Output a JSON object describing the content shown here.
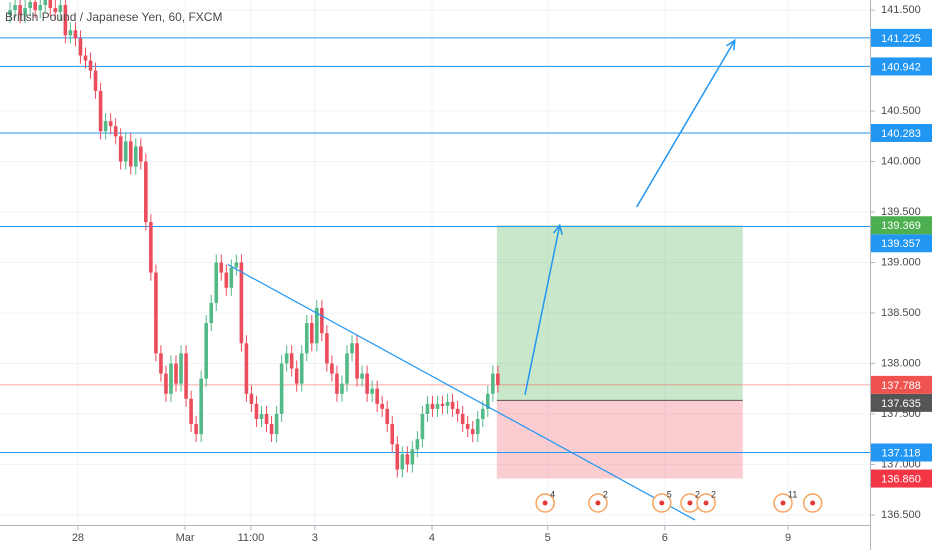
{
  "chart_data": {
    "type": "candlestick",
    "title": "British Pound / Japanese Yen, 60, FXCM",
    "x": [
      2,
      3,
      4,
      5,
      6,
      7,
      8,
      9,
      10,
      11,
      12,
      13,
      14,
      15,
      16,
      17,
      18,
      19,
      20,
      21,
      22,
      23,
      24,
      25,
      26,
      27,
      28,
      29,
      30,
      31,
      32,
      33,
      34,
      35,
      36,
      37,
      38,
      39,
      40,
      41,
      42,
      43,
      44,
      45,
      46,
      47,
      48,
      49,
      50,
      51,
      52,
      53,
      54,
      55,
      56,
      57,
      58,
      59,
      60,
      61,
      62,
      63,
      64,
      65,
      66,
      67,
      68,
      69,
      70,
      71,
      72,
      73,
      74,
      75,
      76,
      77,
      78,
      79,
      80,
      81,
      82,
      83,
      84,
      85,
      86,
      87,
      88,
      89,
      90,
      91,
      92,
      93,
      94,
      95,
      96,
      97,
      98,
      99
    ],
    "candles": [
      [
        141.45,
        141.58,
        141.37,
        141.5
      ],
      [
        141.5,
        141.63,
        141.42,
        141.55
      ],
      [
        141.55,
        141.63,
        141.37,
        141.45
      ],
      [
        141.45,
        141.6,
        141.37,
        141.52
      ],
      [
        141.52,
        141.66,
        141.44,
        141.58
      ],
      [
        141.58,
        141.66,
        141.42,
        141.5
      ],
      [
        141.5,
        141.63,
        141.42,
        141.55
      ],
      [
        141.55,
        141.68,
        141.47,
        141.6
      ],
      [
        141.6,
        141.68,
        141.44,
        141.52
      ],
      [
        141.52,
        141.6,
        141.4,
        141.48
      ],
      [
        141.48,
        141.63,
        141.4,
        141.55
      ],
      [
        141.55,
        141.63,
        141.17,
        141.25
      ],
      [
        141.25,
        141.38,
        141.17,
        141.3
      ],
      [
        141.3,
        141.38,
        141.14,
        141.22
      ],
      [
        141.22,
        141.3,
        140.97,
        141.05
      ],
      [
        141.05,
        141.13,
        140.92,
        141.0
      ],
      [
        141.0,
        141.08,
        140.82,
        140.9
      ],
      [
        140.9,
        140.98,
        140.62,
        140.7
      ],
      [
        140.7,
        140.78,
        140.22,
        140.3
      ],
      [
        140.3,
        140.48,
        140.22,
        140.4
      ],
      [
        140.4,
        140.48,
        140.27,
        140.35
      ],
      [
        140.35,
        140.43,
        140.17,
        140.25
      ],
      [
        140.25,
        140.33,
        139.92,
        140.0
      ],
      [
        140.0,
        140.28,
        139.92,
        140.2
      ],
      [
        140.2,
        140.28,
        139.87,
        139.95
      ],
      [
        139.95,
        140.23,
        139.87,
        140.15
      ],
      [
        140.15,
        140.23,
        139.92,
        140.0
      ],
      [
        140.0,
        140.08,
        139.32,
        139.4
      ],
      [
        139.4,
        139.48,
        138.82,
        138.9
      ],
      [
        138.9,
        138.98,
        138.02,
        138.1
      ],
      [
        138.1,
        138.18,
        137.82,
        137.9
      ],
      [
        137.9,
        137.98,
        137.62,
        137.7
      ],
      [
        137.7,
        138.08,
        137.62,
        138.0
      ],
      [
        138.0,
        138.08,
        137.72,
        137.8
      ],
      [
        137.8,
        138.18,
        137.72,
        138.1
      ],
      [
        138.1,
        138.18,
        137.57,
        137.65
      ],
      [
        137.65,
        137.73,
        137.32,
        137.4
      ],
      [
        137.4,
        137.48,
        137.22,
        137.3
      ],
      [
        137.3,
        137.93,
        137.22,
        137.85
      ],
      [
        137.85,
        138.48,
        137.77,
        138.4
      ],
      [
        138.4,
        138.68,
        138.32,
        138.6
      ],
      [
        138.6,
        139.08,
        138.52,
        139.0
      ],
      [
        139.0,
        139.08,
        138.82,
        138.9
      ],
      [
        138.9,
        138.98,
        138.67,
        138.75
      ],
      [
        138.75,
        139.03,
        138.67,
        138.95
      ],
      [
        138.95,
        139.08,
        138.87,
        139.0
      ],
      [
        139.0,
        139.08,
        138.12,
        138.2
      ],
      [
        138.2,
        138.28,
        137.62,
        137.7
      ],
      [
        137.7,
        137.78,
        137.52,
        137.6
      ],
      [
        137.6,
        137.68,
        137.37,
        137.45
      ],
      [
        137.45,
        137.58,
        137.37,
        137.5
      ],
      [
        137.5,
        137.58,
        137.32,
        137.4
      ],
      [
        137.4,
        137.48,
        137.22,
        137.3
      ],
      [
        137.3,
        137.58,
        137.22,
        137.5
      ],
      [
        137.5,
        138.08,
        137.42,
        138.0
      ],
      [
        138.0,
        138.18,
        137.92,
        138.1
      ],
      [
        138.1,
        138.18,
        137.87,
        137.95
      ],
      [
        137.95,
        138.03,
        137.72,
        137.8
      ],
      [
        137.8,
        138.18,
        137.72,
        138.1
      ],
      [
        138.1,
        138.48,
        138.02,
        138.4
      ],
      [
        138.4,
        138.48,
        138.12,
        138.2
      ],
      [
        138.2,
        138.63,
        138.12,
        138.55
      ],
      [
        138.55,
        138.63,
        138.22,
        138.3
      ],
      [
        138.3,
        138.38,
        137.92,
        138.0
      ],
      [
        138.0,
        138.08,
        137.82,
        137.9
      ],
      [
        137.9,
        137.98,
        137.62,
        137.7
      ],
      [
        137.7,
        137.88,
        137.62,
        137.8
      ],
      [
        137.8,
        138.18,
        137.72,
        138.1
      ],
      [
        138.1,
        138.28,
        138.02,
        138.2
      ],
      [
        138.2,
        138.28,
        137.77,
        137.85
      ],
      [
        137.85,
        137.98,
        137.77,
        137.9
      ],
      [
        137.9,
        137.98,
        137.62,
        137.7
      ],
      [
        137.7,
        137.83,
        137.62,
        137.75
      ],
      [
        137.75,
        137.83,
        137.52,
        137.6
      ],
      [
        137.6,
        137.68,
        137.47,
        137.55
      ],
      [
        137.55,
        137.63,
        137.32,
        137.4
      ],
      [
        137.4,
        137.48,
        137.12,
        137.2
      ],
      [
        137.2,
        137.28,
        136.87,
        136.95
      ],
      [
        136.95,
        137.18,
        136.87,
        137.1
      ],
      [
        137.1,
        137.18,
        136.92,
        137.0
      ],
      [
        137.0,
        137.23,
        136.92,
        137.15
      ],
      [
        137.15,
        137.33,
        137.07,
        137.25
      ],
      [
        137.25,
        137.58,
        137.17,
        137.5
      ],
      [
        137.5,
        137.68,
        137.42,
        137.6
      ],
      [
        137.6,
        137.68,
        137.47,
        137.55
      ],
      [
        137.55,
        137.68,
        137.47,
        137.6
      ],
      [
        137.6,
        137.68,
        137.5,
        137.58
      ],
      [
        137.58,
        137.7,
        137.5,
        137.62
      ],
      [
        137.62,
        137.7,
        137.47,
        137.55
      ],
      [
        137.55,
        137.63,
        137.42,
        137.5
      ],
      [
        137.5,
        137.58,
        137.32,
        137.4
      ],
      [
        137.4,
        137.48,
        137.27,
        137.35
      ],
      [
        137.35,
        137.43,
        137.22,
        137.3
      ],
      [
        137.3,
        137.53,
        137.22,
        137.45
      ],
      [
        137.45,
        137.63,
        137.37,
        137.55
      ],
      [
        137.55,
        137.78,
        137.47,
        137.7
      ],
      [
        137.7,
        137.98,
        137.62,
        137.9
      ],
      [
        137.9,
        137.98,
        137.71,
        137.788
      ]
    ],
    "up_color": "#53b987",
    "down_color": "#eb4d5c",
    "xlim": [
      0,
      173
    ],
    "ylim": [
      136.4,
      141.6
    ],
    "xticks": [
      {
        "value": 15.5,
        "label": "28"
      },
      {
        "value": 36.8,
        "label": "Mar"
      },
      {
        "value": 49.9,
        "label": "11:00"
      },
      {
        "value": 62.6,
        "label": "3"
      },
      {
        "value": 85.9,
        "label": "4"
      },
      {
        "value": 108.9,
        "label": "5"
      },
      {
        "value": 132.2,
        "label": "6"
      },
      {
        "value": 156.7,
        "label": "9"
      }
    ],
    "yticks": [
      {
        "value": 136.5,
        "label": "136.500"
      },
      {
        "value": 137,
        "label": "137.000"
      },
      {
        "value": 137.5,
        "label": "137.500"
      },
      {
        "value": 138,
        "label": "138.000"
      },
      {
        "value": 138.5,
        "label": "138.500"
      },
      {
        "value": 139,
        "label": "139.000"
      },
      {
        "value": 139.5,
        "label": "139.500"
      },
      {
        "value": 140,
        "label": "140.000"
      },
      {
        "value": 140.5,
        "label": "140.500"
      },
      {
        "value": 141.5,
        "label": "141.500"
      }
    ],
    "grid": true,
    "levels": [
      141.225,
      140.942,
      140.283,
      139.357,
      137.118
    ],
    "level_color": "#2196f3",
    "last_price": 137.788,
    "last_price_color": "#ef5350",
    "position": {
      "x": [
        98.8,
        147.7
      ],
      "target": 139.369,
      "entry": 137.635,
      "stop": {
        "value": 136.86,
        "label": "136.860"
      },
      "target_color": "#4caf50",
      "entry_color": "#555555",
      "stop_color": "#f23645"
    },
    "trend_line": {
      "x": [
        45.3,
        138.2
      ],
      "y": [
        138.98,
        136.45
      ]
    },
    "arrows": [
      {
        "x": [
          104.4,
          111.3
        ],
        "y": [
          137.69,
          139.37
        ]
      },
      {
        "x": [
          126.6,
          146.1
        ],
        "y": [
          139.55,
          141.2
        ]
      }
    ],
    "events": {
      "x": [
        108.4,
        118.9,
        131.6,
        137.2,
        140.4,
        155.7,
        161.6
      ],
      "labels": [
        "4",
        "2",
        "5",
        "2",
        "2",
        "11",
        null
      ]
    }
  }
}
